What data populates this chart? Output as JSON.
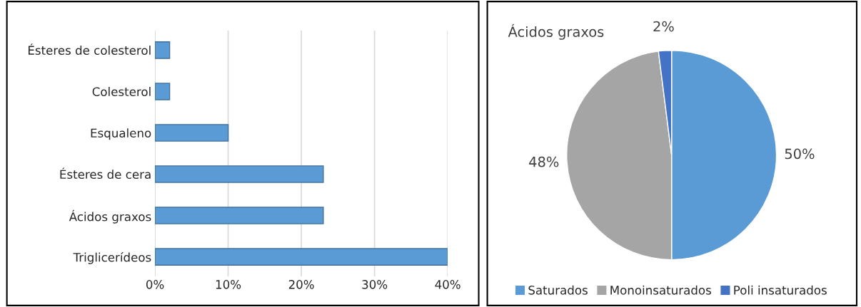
{
  "chart_data": [
    {
      "type": "bar",
      "orientation": "horizontal",
      "categories": [
        "Ésteres de colesterol",
        "Colesterol",
        "Esqualeno",
        "Ésteres de cera",
        "Ácidos graxos",
        "Triglicerídeos"
      ],
      "values": [
        2,
        2,
        10,
        23,
        23,
        40
      ],
      "color": "#5b9bd5",
      "xlim": [
        0,
        40
      ],
      "xticks": [
        {
          "value": 0,
          "label": "0%"
        },
        {
          "value": 10,
          "label": "10%"
        },
        {
          "value": 20,
          "label": "20%"
        },
        {
          "value": 30,
          "label": "30%"
        },
        {
          "value": 40,
          "label": "40%"
        }
      ],
      "grid": "x"
    },
    {
      "type": "pie",
      "title": "Ácidos graxos",
      "categories": [
        "Saturados",
        "Monoinsaturados",
        "Poli insaturados"
      ],
      "values": [
        50,
        48,
        2
      ],
      "colors": [
        "#5b9bd5",
        "#a5a5a5",
        "#4472c4"
      ],
      "value_labels": [
        "50%",
        "48%",
        "2%"
      ],
      "legend": "bottom"
    }
  ]
}
